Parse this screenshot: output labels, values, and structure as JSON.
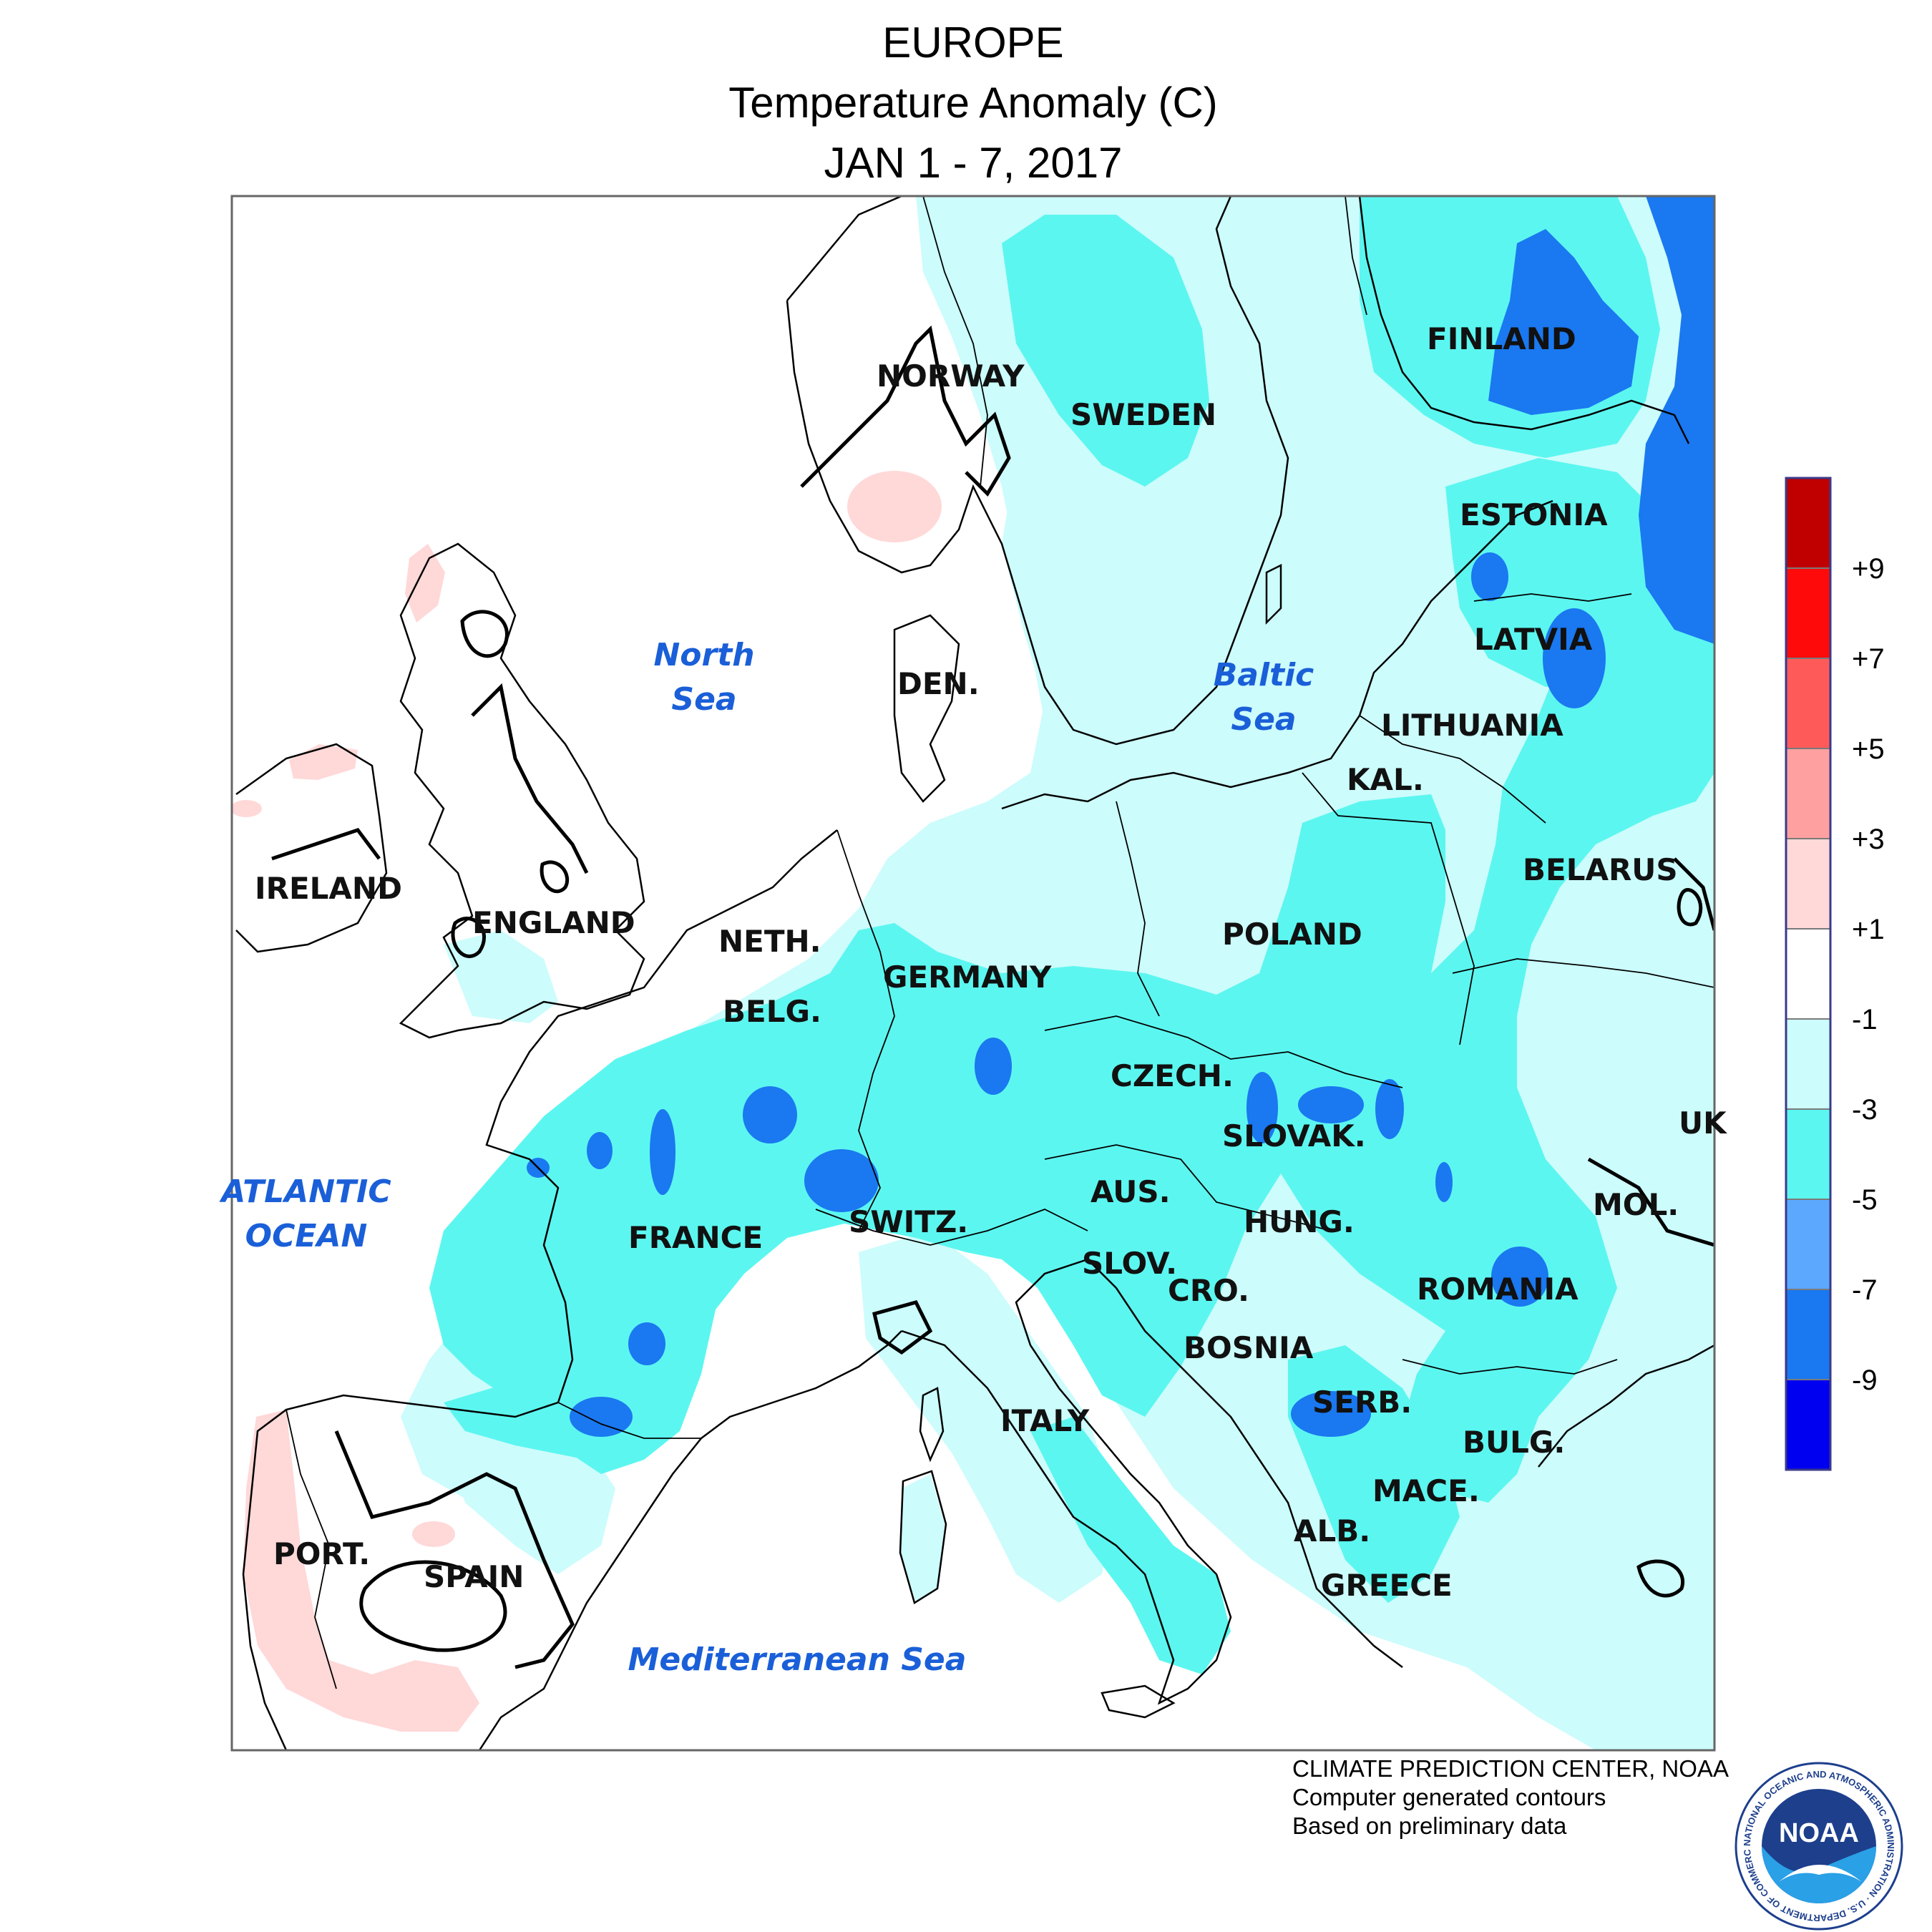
{
  "header": {
    "title": "EUROPE",
    "subtitle": "Temperature Anomaly (C)",
    "period": "JAN 1 - 7, 2017"
  },
  "legend": {
    "unit": "C",
    "tick_labels": [
      "+9",
      "+7",
      "+5",
      "+3",
      "+1",
      "-1",
      "-3",
      "-5",
      "-7",
      "-9"
    ],
    "bins": [
      {
        "range": "> +9",
        "color": "#c00000"
      },
      {
        "range": "+7 to +9",
        "color": "#ff0a0a"
      },
      {
        "range": "+5 to +7",
        "color": "#ff5a5a"
      },
      {
        "range": "+3 to +5",
        "color": "#ffa0a0"
      },
      {
        "range": "+1 to +3",
        "color": "#ffd8d8"
      },
      {
        "range": "-1 to +1",
        "color": "#ffffff"
      },
      {
        "range": "-3 to -1",
        "color": "#ccfcfc"
      },
      {
        "range": "-5 to -3",
        "color": "#5cf6f0"
      },
      {
        "range": "-7 to -5",
        "color": "#5ca8ff"
      },
      {
        "range": "-9 to -7",
        "color": "#1a78f0"
      },
      {
        "range": "< -9",
        "color": "#0000f0"
      }
    ]
  },
  "labels": {
    "countries": [
      "NORWAY",
      "SWEDEN",
      "FINLAND",
      "ESTONIA",
      "LATVIA",
      "LITHUANIA",
      "KAL.",
      "BELARUS",
      "DEN.",
      "IRELAND",
      "ENGLAND",
      "NETH.",
      "BELG.",
      "GERMANY",
      "POLAND",
      "CZECH.",
      "SLOVAK.",
      "UK",
      "AUS.",
      "HUNG.",
      "MOL.",
      "SWITZ.",
      "FRANCE",
      "SLOV.",
      "CRO.",
      "ROMANIA",
      "BOSNIA",
      "SERB.",
      "ITALY",
      "BULG.",
      "MACE.",
      "ALB.",
      "PORT.",
      "SPAIN",
      "GREECE"
    ],
    "water": [
      "North",
      "Sea",
      "Baltic",
      "Sea",
      "ATLANTIC",
      "OCEAN",
      "Mediterranean Sea"
    ]
  },
  "credits": [
    "CLIMATE PREDICTION CENTER, NOAA",
    "Computer generated contours",
    "Based on preliminary data"
  ],
  "logo": {
    "text": "NOAA",
    "ring_text": "NATIONAL OCEANIC AND ATMOSPHERIC ADMINISTRATION · U.S. DEPARTMENT OF COMMERCE"
  }
}
